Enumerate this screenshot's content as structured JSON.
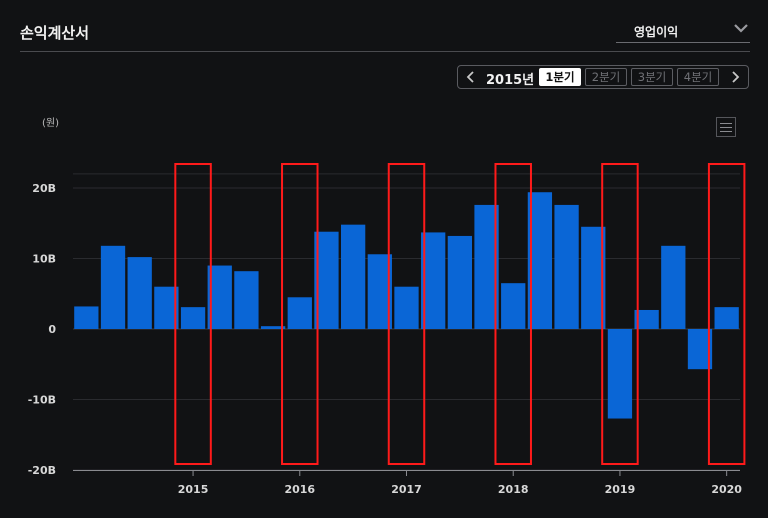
{
  "header": {
    "title": "손익계산서",
    "dropdown_value": "영업이익"
  },
  "period_nav": {
    "year": "2015년",
    "quarters": [
      "1분기",
      "2분기",
      "3분기",
      "4분기"
    ],
    "active_index": 0
  },
  "icons": {
    "prev": "chevron-left-icon",
    "next": "chevron-right-icon",
    "dropdown": "chevron-down-icon",
    "menu": "hamburger-menu-icon"
  },
  "colors": {
    "bar": "#0a66d6",
    "highlight": "#ff1a1a",
    "background": "#111214"
  },
  "chart_data": {
    "type": "bar",
    "unit_label": "(원)",
    "ylim": [
      -20,
      22
    ],
    "y_ticks": [
      {
        "value": 20,
        "label": "20B"
      },
      {
        "value": 10,
        "label": "10B"
      },
      {
        "value": 0,
        "label": "0"
      },
      {
        "value": -10,
        "label": "-10B"
      },
      {
        "value": -20,
        "label": "-20B"
      }
    ],
    "x_tick_labels": [
      "2015",
      "2016",
      "2017",
      "2018",
      "2019",
      "2020"
    ],
    "x_tick_bar_index": [
      4,
      8,
      12,
      16,
      20,
      24
    ],
    "values": [
      3.2,
      11.8,
      10.2,
      6.0,
      3.1,
      9.0,
      8.2,
      0.4,
      4.5,
      13.8,
      14.8,
      10.6,
      6.0,
      13.7,
      13.2,
      17.6,
      6.5,
      19.4,
      17.6,
      14.5,
      -12.7,
      2.7,
      11.8,
      -5.7,
      3.1
    ],
    "highlight_bar_index": [
      4,
      8,
      12,
      16,
      20,
      24
    ],
    "grid": true
  }
}
